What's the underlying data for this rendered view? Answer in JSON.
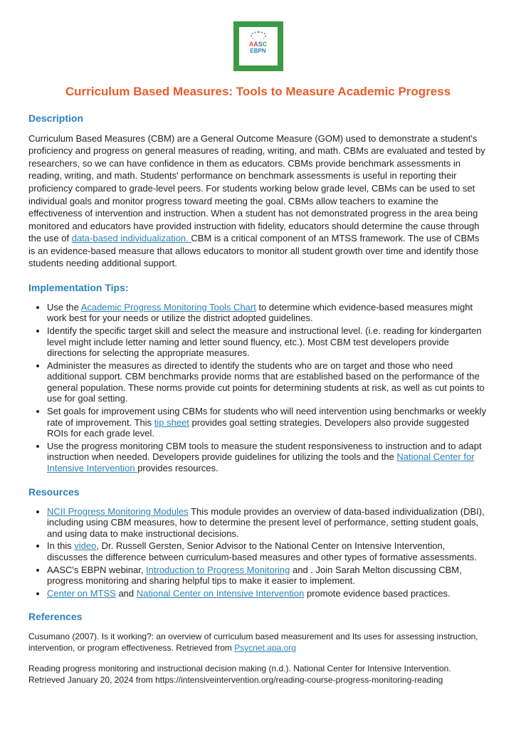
{
  "logo": {
    "line1_parts": [
      "A",
      "A",
      "S",
      "C"
    ],
    "line2": "EBPN"
  },
  "title": "Curriculum Based Measures: Tools to Measure Academic Progress",
  "sections": {
    "description": {
      "heading": "Description",
      "para_pre": "Curriculum Based Measures (CBM) are a General Outcome Measure (GOM) used to demonstrate a student's proficiency and progress on general measures of reading, writing, and math. CBMs are evaluated and tested by researchers, so we can have confidence in them as educators. CBMs provide benchmark assessments in reading, writing, and math. Students' performance on benchmark assessments is useful in reporting their proficiency compared to grade-level peers. For students working below grade level, CBMs can be used to set individual goals and monitor progress toward meeting the goal.  CBMs allow teachers to examine the effectiveness of intervention and instruction. When a student has not demonstrated progress in the area being monitored and educators have provided instruction with fidelity, educators should determine the cause through the use of ",
      "link": "data-based individualization. ",
      "para_post": " CBM is a critical component of an MTSS framework. The use of CBMs is an evidence-based measure that allows educators to monitor all student growth over time and identify those students needing additional support."
    },
    "tips": {
      "heading": "Implementation Tips:",
      "items": [
        {
          "pre": "Use the ",
          "link": "Academic Progress Monitoring Tools Chart",
          "post": " to determine which evidence-based measures might work best for your needs or utilize the district adopted guidelines."
        },
        {
          "pre": "Identify the specific target skill and select the measure and instructional level. (i.e. reading for kindergarten level might include letter naming and letter sound fluency, etc.). Most CBM test developers provide directions for selecting the appropriate measures.",
          "link": "",
          "post": ""
        },
        {
          "pre": "Administer the measures as directed to identify the students who are on target and those who need additional support. CBM benchmarks provide norms that are established based on the performance of the general population. These norms provide cut points for determining students at risk, as well as cut points to use for goal setting.",
          "link": "",
          "post": ""
        },
        {
          "pre": "Set goals for improvement using CBMs for students who will need intervention using benchmarks or weekly rate of improvement.  This ",
          "link": "tip sheet",
          "post": " provides goal setting strategies. Developers also provide suggested ROIs for each grade level."
        },
        {
          "pre": "Use the progress monitoring CBM tools to measure the student responsiveness to instruction and to adapt instruction when needed.  Developers provide guidelines for utilizing the tools and the ",
          "link": "National Center for Intensive Intervention ",
          "post": "provides resources."
        }
      ]
    },
    "resources": {
      "heading": "Resources",
      "items": [
        {
          "pre": " ",
          "link": "NCII Progress Monitoring Modules",
          "post": " This module provides an overview of data-based individualization (DBI), including using CBM measures, how to determine the present level of performance, setting student goals, and using data to make instructional decisions."
        },
        {
          "pre": "In this ",
          "link": "video",
          "post": ", Dr. Russell Gersten, Senior Advisor to the National Center on Intensive Intervention, discusses the difference between curriculum-based measures and other types of formative assessments."
        },
        {
          "pre": "AASC's EBPN webinar, ",
          "link": "Introduction to Progress Monitoring",
          "post": " and .  Join Sarah Melton discussing CBM, progress monitoring and sharing helpful tips to make it easier to implement."
        },
        {
          "pre": "",
          "link": "Center on MTSS",
          "mid": " and ",
          "link2": "National Center on Intensive Intervention",
          "post": " promote evidence based practices."
        }
      ]
    },
    "references": {
      "heading": "References",
      "items": [
        {
          "pre": "Cusumano (2007). Is it working?: an overview of curriculum based measurement and Its uses for assessing instruction, intervention, or program effectiveness.  Retrieved from ",
          "link": "Psycnet.apa.org",
          "post": ""
        },
        {
          "pre": "Reading progress monitoring and instructional decision making (n.d.). National Center for Intensive Intervention. Retrieved January 20, 2024 from https://intensiveintervention.org/reading-course-progress-monitoring-reading",
          "link": "",
          "post": ""
        }
      ]
    }
  }
}
